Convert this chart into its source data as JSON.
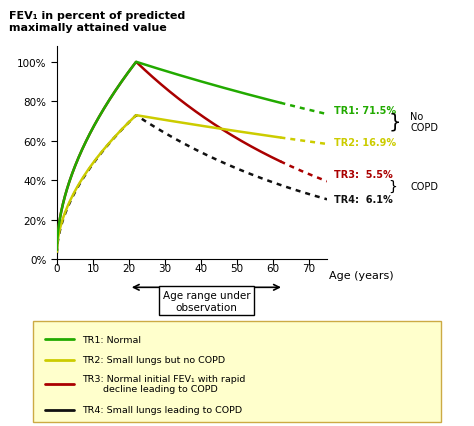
{
  "title_line1": "FEV₁ in percent of predicted",
  "title_line2": "maximally attained value",
  "xlabel": "Age (years)",
  "xticks": [
    0,
    10,
    20,
    30,
    40,
    50,
    60,
    70
  ],
  "ytick_labels": [
    "0%",
    "20%",
    "40%",
    "60%",
    "80%",
    "100%"
  ],
  "xlim": [
    0,
    75
  ],
  "ylim": [
    0,
    108
  ],
  "tr1_color": "#22aa00",
  "tr2_color": "#cccc00",
  "tr3_color": "#aa0000",
  "tr4_color": "#111111",
  "annotation_tr1": "TR1: 71.5%",
  "annotation_tr2": "TR2: 16.9%",
  "annotation_tr3": "TR3:  5.5%",
  "annotation_tr4": "TR4:  6.1%",
  "no_copd_label": "No\nCOPD",
  "copd_label": "COPD",
  "age_range_label": "Age range under\nobservation",
  "legend_entries": [
    {
      "color": "#22aa00",
      "label": "TR1: Normal"
    },
    {
      "color": "#cccc00",
      "label": "TR2: Small lungs but no COPD"
    },
    {
      "color": "#aa0000",
      "label": "TR3: Normal initial FEV₁ with rapid\n       decline leading to COPD"
    },
    {
      "color": "#111111",
      "label": "TR4: Small lungs leading to COPD"
    }
  ],
  "legend_bg": "#ffffcc",
  "split_age": 62,
  "obs_start": 20,
  "obs_end": 63
}
